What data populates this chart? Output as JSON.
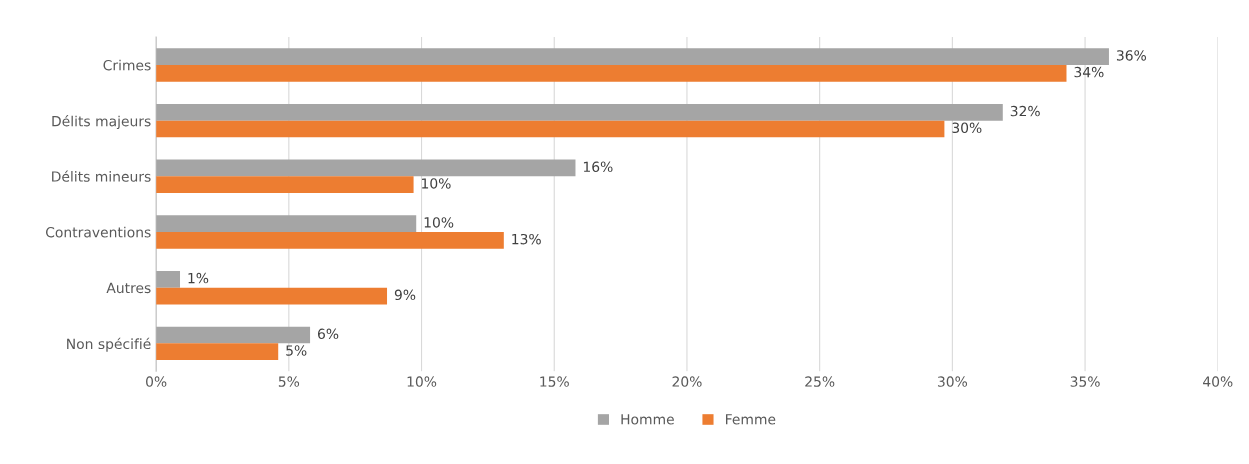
{
  "chart_data": {
    "type": "bar",
    "orientation": "horizontal",
    "categories": [
      "Crimes",
      "Délits majeurs",
      "Délits mineurs",
      "Contraventions",
      "Autres",
      "Non spécifié"
    ],
    "series": [
      {
        "name": "Homme",
        "color": "#a5a5a5",
        "values": [
          35.9,
          31.9,
          15.8,
          9.8,
          0.9,
          5.8
        ],
        "value_labels": [
          "36%",
          "32%",
          "16%",
          "10%",
          "1%",
          "6%"
        ]
      },
      {
        "name": "Femme",
        "color": "#ed7d31",
        "values": [
          34.3,
          29.7,
          9.7,
          13.1,
          8.7,
          4.6
        ],
        "value_labels": [
          "34%",
          "30%",
          "10%",
          "13%",
          "9%",
          "5%"
        ]
      }
    ],
    "xlim": [
      0,
      40
    ],
    "xticks": [
      {
        "value": 0,
        "label": "0%"
      },
      {
        "value": 5,
        "label": "5%"
      },
      {
        "value": 10,
        "label": "10%"
      },
      {
        "value": 15,
        "label": "15%"
      },
      {
        "value": 20,
        "label": "20%"
      },
      {
        "value": 25,
        "label": "25%"
      },
      {
        "value": 30,
        "label": "30%"
      },
      {
        "value": 35,
        "label": "35%"
      },
      {
        "value": 40,
        "label": "40%"
      }
    ],
    "grid": "x",
    "legend": "bottom"
  }
}
